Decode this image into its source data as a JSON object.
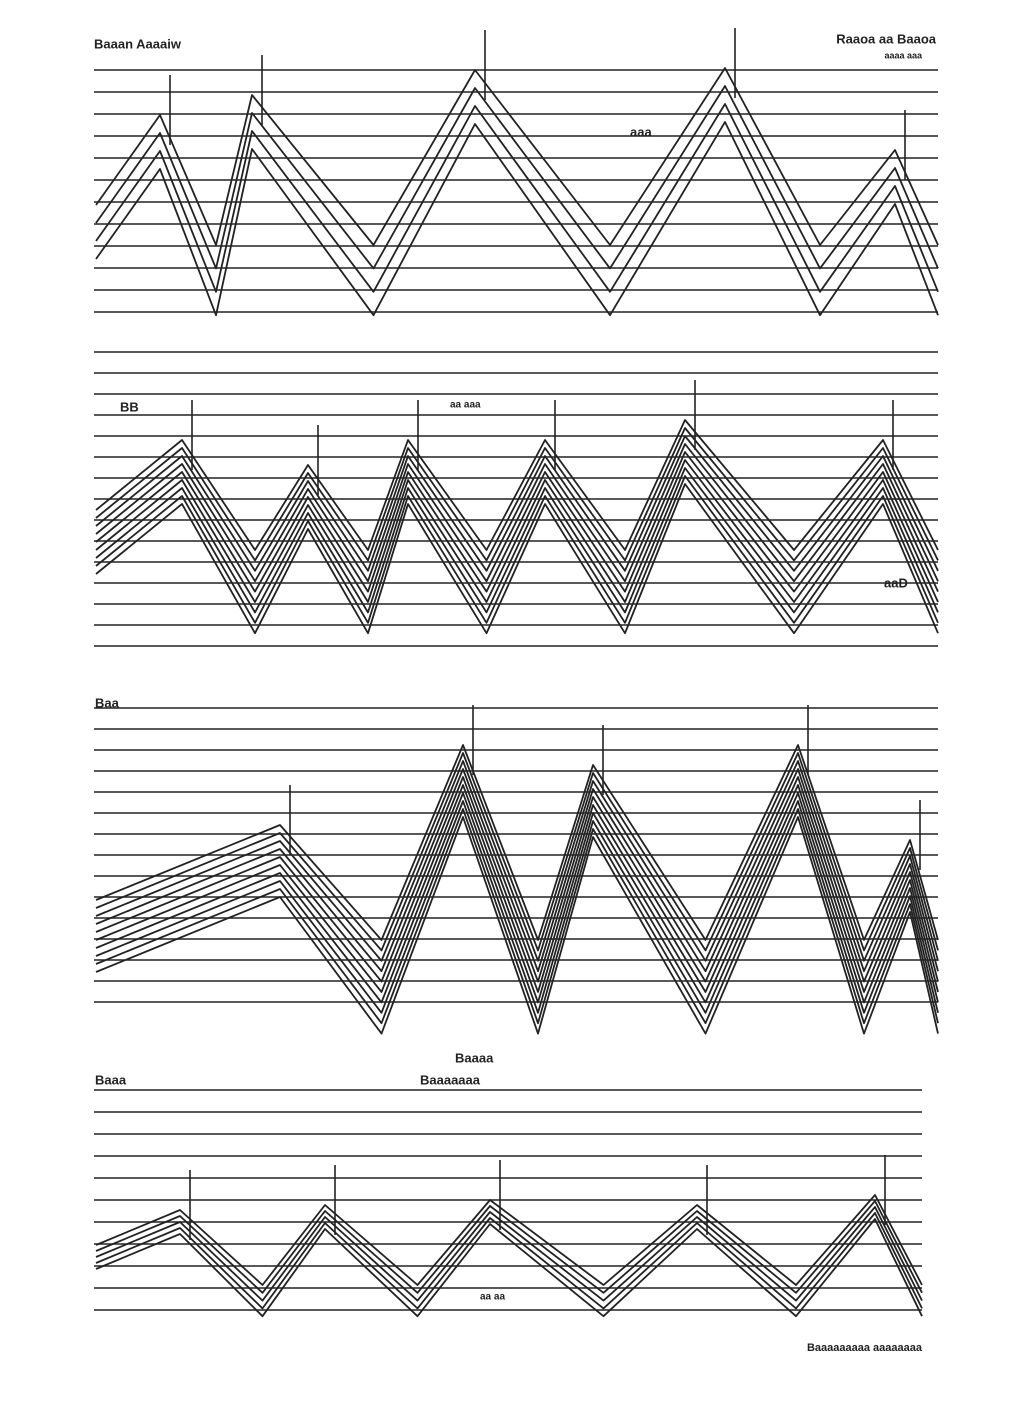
{
  "header": {
    "title": "Baaan Aaaaiw",
    "right_title": "Raaoa aa Baaoa",
    "right_subtitle": "aaaa aaa"
  },
  "panels": [
    {
      "labels": [
        "aaa"
      ]
    },
    {
      "labels": [
        "BB",
        "aa aaa",
        "aaD"
      ]
    },
    {
      "labels": [
        "Baa"
      ]
    },
    {
      "labels": [
        "Baaa",
        "Baaaa",
        "Baaaaaaa",
        "aa aa"
      ]
    }
  ],
  "footer": "Baaaaaaaaa aaaaaaaa"
}
